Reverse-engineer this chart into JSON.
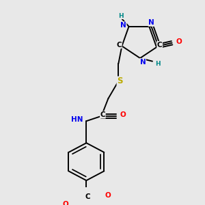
{
  "bg_color": "#e8e8e8",
  "bond_color": "#000000",
  "atom_colors": {
    "N": "#0000ee",
    "O": "#ff0000",
    "S": "#bbaa00",
    "H": "#008888",
    "C": "#000000"
  },
  "figsize": [
    3.0,
    3.0
  ],
  "dpi": 100,
  "lw": 1.4,
  "fs": 7.5
}
